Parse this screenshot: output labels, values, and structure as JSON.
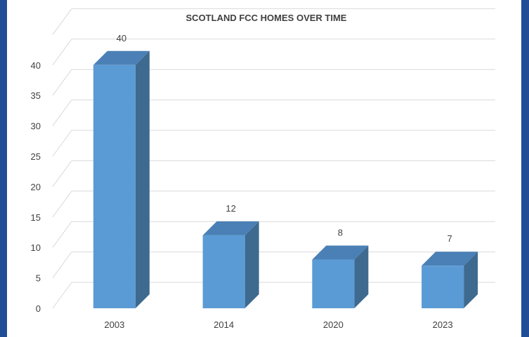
{
  "chart_data": {
    "type": "bar",
    "style": "3d-column",
    "title": "SCOTLAND FCC HOMES OVER TIME",
    "categories": [
      "2003",
      "2014",
      "2020",
      "2023"
    ],
    "values": [
      40,
      12,
      8,
      7
    ],
    "data_labels": [
      "40",
      "12",
      "8",
      "7"
    ],
    "yticks": [
      "0",
      "5",
      "10",
      "15",
      "20",
      "25",
      "30",
      "35",
      "40"
    ],
    "ylim": [
      0,
      45
    ],
    "grid": true,
    "legend": "none",
    "colors": {
      "bar_front": "#5b9bd5",
      "bar_side": "#3e6a8f",
      "bar_top": "#4a80b5",
      "grid": "#d9d9d9",
      "background": "#1f4e96"
    }
  }
}
